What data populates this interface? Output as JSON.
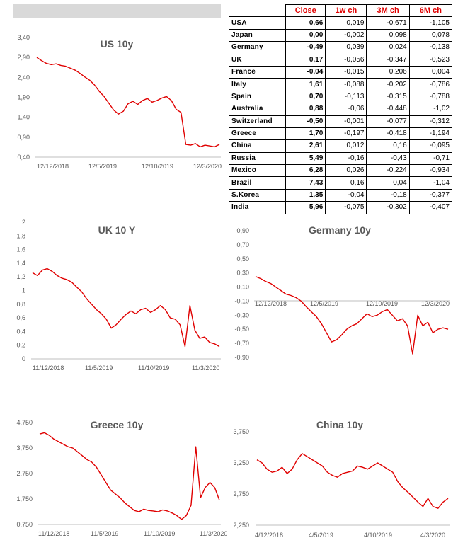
{
  "table": {
    "headers": [
      "",
      "Close",
      "1w ch",
      "3M ch",
      "6M ch"
    ],
    "rows": [
      [
        "USA",
        "0,66",
        "0,019",
        "-0,671",
        "-1,105"
      ],
      [
        "Japan",
        "0,00",
        "-0,002",
        "0,098",
        "0,078"
      ],
      [
        "Germany",
        "-0,49",
        "0,039",
        "0,024",
        "-0,138"
      ],
      [
        "UK",
        "0,17",
        "-0,056",
        "-0,347",
        "-0,523"
      ],
      [
        "France",
        "-0,04",
        "-0,015",
        "0,206",
        "0,004"
      ],
      [
        "Italy",
        "1,61",
        "-0,088",
        "-0,202",
        "-0,786"
      ],
      [
        "Spain",
        "0,70",
        "-0,113",
        "-0,315",
        "-0,788"
      ],
      [
        "Australia",
        "0,88",
        "-0,06",
        "-0,448",
        "-1,02"
      ],
      [
        "Switzerland",
        "-0,50",
        "-0,001",
        "-0,077",
        "-0,312"
      ],
      [
        "Greece",
        "1,70",
        "-0,197",
        "-0,418",
        "-1,194"
      ],
      [
        "China",
        "2,61",
        "0,012",
        "0,16",
        "-0,095"
      ],
      [
        "Russia",
        "5,49",
        "-0,16",
        "-0,43",
        "-0,71"
      ],
      [
        "Mexico",
        "6,28",
        "0,026",
        "-0,224",
        "-0,934"
      ],
      [
        "Brazil",
        "7,43",
        "0,16",
        "0,04",
        "-1,04"
      ],
      [
        "S.Korea",
        "1,35",
        "-0,04",
        "-0,18",
        "-0,377"
      ],
      [
        "India",
        "5,96",
        "-0,075",
        "-0,302",
        "-0,407"
      ]
    ]
  },
  "colors": {
    "line": "#e00000",
    "text": "#595959",
    "axis": "#bfbfbf",
    "header": "#e00000"
  },
  "chart_data": [
    {
      "type": "line",
      "title": "US 10y",
      "yticks": [
        "3,40",
        "2,90",
        "2,40",
        "1,90",
        "1,40",
        "0,90",
        "0,40"
      ],
      "xticks": [
        "12/12/2018",
        "12/5/2019",
        "12/10/2019",
        "12/3/2020"
      ],
      "ylim": [
        0.4,
        3.4
      ],
      "series": [
        {
          "values": [
            2.9,
            2.82,
            2.75,
            2.72,
            2.74,
            2.7,
            2.68,
            2.63,
            2.58,
            2.5,
            2.41,
            2.33,
            2.21,
            2.05,
            1.92,
            1.75,
            1.58,
            1.48,
            1.55,
            1.74,
            1.8,
            1.72,
            1.82,
            1.87,
            1.78,
            1.82,
            1.88,
            1.92,
            1.82,
            1.6,
            1.52,
            0.72,
            0.7,
            0.74,
            0.66,
            0.7,
            0.68,
            0.66,
            0.72
          ]
        }
      ]
    },
    {
      "type": "line",
      "title": "UK 10 Y",
      "yticks": [
        "2",
        "1,8",
        "1,6",
        "1,4",
        "1,2",
        "1",
        "0,8",
        "0,6",
        "0,4",
        "0,2",
        "0"
      ],
      "xticks": [
        "11/12/2018",
        "11/5/2019",
        "11/10/2019",
        "11/3/2020"
      ],
      "ylim": [
        0,
        2
      ],
      "series": [
        {
          "values": [
            1.26,
            1.22,
            1.3,
            1.32,
            1.28,
            1.22,
            1.18,
            1.16,
            1.12,
            1.05,
            0.98,
            0.88,
            0.8,
            0.72,
            0.66,
            0.58,
            0.45,
            0.5,
            0.58,
            0.65,
            0.7,
            0.66,
            0.72,
            0.74,
            0.68,
            0.72,
            0.78,
            0.72,
            0.6,
            0.58,
            0.5,
            0.18,
            0.78,
            0.42,
            0.3,
            0.32,
            0.24,
            0.22,
            0.18
          ]
        }
      ]
    },
    {
      "type": "line",
      "title": "Germany 10y",
      "yticks": [
        "0,90",
        "0,70",
        "0,50",
        "0,30",
        "0,10",
        "-0,10",
        "-0,30",
        "-0,50",
        "-0,70",
        "-0,90"
      ],
      "xticks": [
        "12/12/2018",
        "12/5/2019",
        "12/10/2019",
        "12/3/2020"
      ],
      "ylim": [
        -0.9,
        0.9
      ],
      "series": [
        {
          "values": [
            0.25,
            0.22,
            0.18,
            0.15,
            0.1,
            0.05,
            0.0,
            -0.02,
            -0.05,
            -0.1,
            -0.18,
            -0.25,
            -0.32,
            -0.42,
            -0.55,
            -0.68,
            -0.65,
            -0.58,
            -0.5,
            -0.45,
            -0.42,
            -0.35,
            -0.28,
            -0.32,
            -0.3,
            -0.25,
            -0.22,
            -0.3,
            -0.38,
            -0.35,
            -0.45,
            -0.85,
            -0.3,
            -0.45,
            -0.4,
            -0.55,
            -0.5,
            -0.48,
            -0.5
          ]
        }
      ]
    },
    {
      "type": "line",
      "title": "Greece 10y",
      "yticks": [
        "4,750",
        "3,750",
        "2,750",
        "1,750",
        "0,750"
      ],
      "xticks": [
        "11/12/2018",
        "11/5/2019",
        "11/10/2019",
        "11/3/2020"
      ],
      "ylim": [
        0.75,
        4.75
      ],
      "series": [
        {
          "values": [
            4.3,
            4.35,
            4.25,
            4.1,
            4.0,
            3.9,
            3.8,
            3.75,
            3.6,
            3.45,
            3.3,
            3.2,
            3.0,
            2.7,
            2.4,
            2.1,
            1.95,
            1.8,
            1.6,
            1.45,
            1.3,
            1.25,
            1.35,
            1.3,
            1.28,
            1.25,
            1.32,
            1.28,
            1.2,
            1.1,
            0.95,
            1.1,
            1.5,
            3.8,
            1.8,
            2.2,
            2.4,
            2.2,
            1.7
          ]
        }
      ]
    },
    {
      "type": "line",
      "title": "China 10y",
      "yticks": [
        "3,750",
        "3,250",
        "2,750",
        "2,250"
      ],
      "xticks": [
        "4/12/2018",
        "4/5/2019",
        "4/10/2019",
        "4/3/2020"
      ],
      "ylim": [
        2.25,
        3.75
      ],
      "series": [
        {
          "values": [
            3.3,
            3.25,
            3.15,
            3.1,
            3.12,
            3.18,
            3.08,
            3.15,
            3.3,
            3.4,
            3.35,
            3.3,
            3.25,
            3.2,
            3.1,
            3.05,
            3.02,
            3.08,
            3.1,
            3.12,
            3.2,
            3.18,
            3.15,
            3.2,
            3.25,
            3.2,
            3.15,
            3.1,
            2.95,
            2.85,
            2.78,
            2.7,
            2.62,
            2.55,
            2.68,
            2.55,
            2.52,
            2.62,
            2.68
          ]
        }
      ]
    }
  ]
}
